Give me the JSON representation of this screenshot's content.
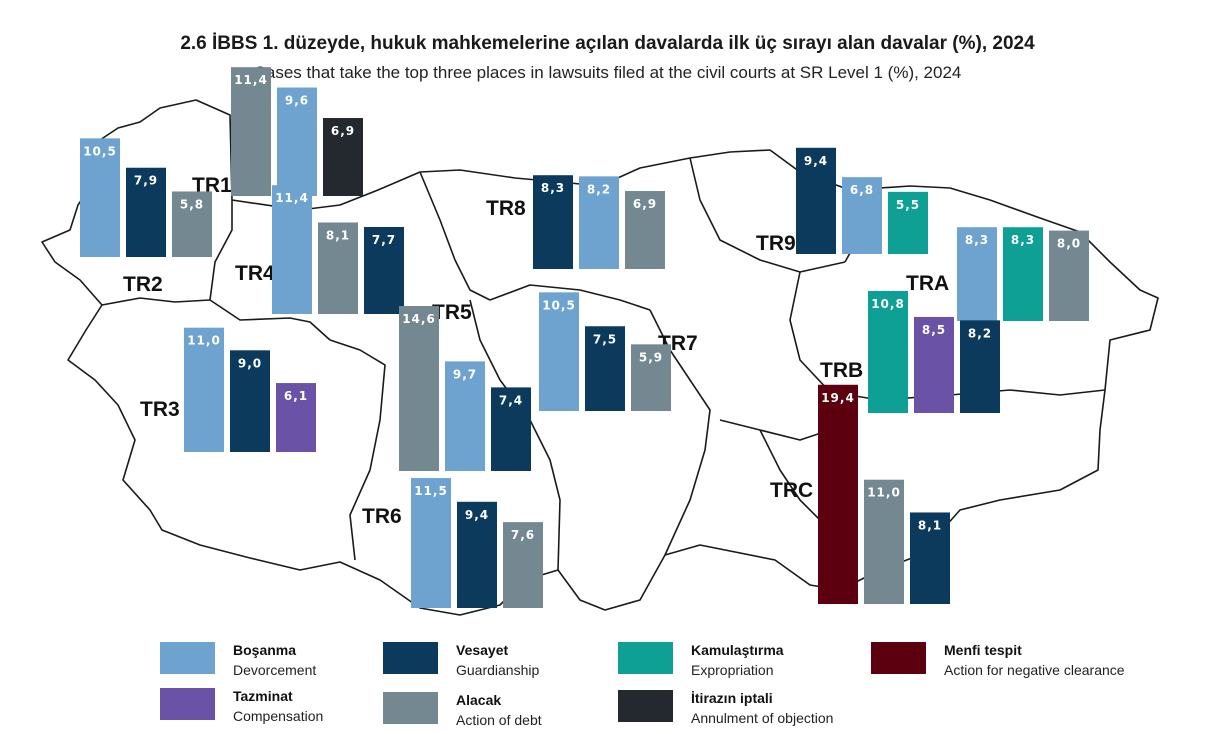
{
  "title": "2.6 İBBS 1. düzeyde, hukuk mahkemelerine açılan davalarda ilk üç sırayı alan davalar (%), 2024",
  "subtitle": "Cases that take the top three places in lawsuits filed at the civil courts at SR Level 1 (%), 2024",
  "legend": [
    {
      "tr": "Boşanma",
      "en": "Devorcement",
      "color": "#6ea3cf"
    },
    {
      "tr": "Vesayet",
      "en": "Guardianship",
      "color": "#0b3a5c"
    },
    {
      "tr": "Kamulaştırma",
      "en": "Expropriation",
      "color": "#0fa095"
    },
    {
      "tr": "Menfi tespit",
      "en": "Action for negative clearance",
      "color": "#5c0010"
    },
    {
      "tr": "Tazminat",
      "en": "Compensation",
      "color": "#6a52a6"
    },
    {
      "tr": "Alacak",
      "en": "Action of debt",
      "color": "#748891"
    },
    {
      "tr": "İtirazın iptali",
      "en": "Annulment of objection",
      "color": "#23292f"
    }
  ],
  "chart_data": {
    "type": "bar",
    "title": "2.6 İBBS 1. düzeyde, hukuk mahkemelerine açılan davalarda ilk üç sırayı alan davalar (%), 2024",
    "subtitle": "Cases that take the top three places in lawsuits filed at the civil courts at SR Level 1 (%), 2024",
    "map_background": "Turkey NUTS-1 regions",
    "categories": [
      "Boşanma",
      "Vesayet",
      "Kamulaştırma",
      "Menfi tespit",
      "Tazminat",
      "Alacak",
      "İtirazın iptali"
    ],
    "regions": [
      {
        "name": "TR1",
        "bars": [
          {
            "category": "Alacak",
            "value": 11.4,
            "label": "11,4"
          },
          {
            "category": "Boşanma",
            "value": 9.6,
            "label": "9,6"
          },
          {
            "category": "İtirazın iptali",
            "value": 6.9,
            "label": "6,9"
          }
        ]
      },
      {
        "name": "TR2",
        "bars": [
          {
            "category": "Boşanma",
            "value": 10.5,
            "label": "10,5"
          },
          {
            "category": "Vesayet",
            "value": 7.9,
            "label": "7,9"
          },
          {
            "category": "Alacak",
            "value": 5.8,
            "label": "5,8"
          }
        ]
      },
      {
        "name": "TR3",
        "bars": [
          {
            "category": "Boşanma",
            "value": 11.0,
            "label": "11,0"
          },
          {
            "category": "Vesayet",
            "value": 9.0,
            "label": "9,0"
          },
          {
            "category": "Tazminat",
            "value": 6.1,
            "label": "6,1"
          }
        ]
      },
      {
        "name": "TR4",
        "bars": [
          {
            "category": "Boşanma",
            "value": 11.4,
            "label": "11,4"
          },
          {
            "category": "Alacak",
            "value": 8.1,
            "label": "8,1"
          },
          {
            "category": "Vesayet",
            "value": 7.7,
            "label": "7,7"
          }
        ]
      },
      {
        "name": "TR5",
        "bars": [
          {
            "category": "Alacak",
            "value": 14.6,
            "label": "14,6"
          },
          {
            "category": "Boşanma",
            "value": 9.7,
            "label": "9,7"
          },
          {
            "category": "Vesayet",
            "value": 7.4,
            "label": "7,4"
          }
        ]
      },
      {
        "name": "TR6",
        "bars": [
          {
            "category": "Boşanma",
            "value": 11.5,
            "label": "11,5"
          },
          {
            "category": "Vesayet",
            "value": 9.4,
            "label": "9,4"
          },
          {
            "category": "Alacak",
            "value": 7.6,
            "label": "7,6"
          }
        ]
      },
      {
        "name": "TR7",
        "bars": [
          {
            "category": "Boşanma",
            "value": 10.5,
            "label": "10,5"
          },
          {
            "category": "Vesayet",
            "value": 7.5,
            "label": "7,5"
          },
          {
            "category": "Alacak",
            "value": 5.9,
            "label": "5,9"
          }
        ]
      },
      {
        "name": "TR8",
        "bars": [
          {
            "category": "Vesayet",
            "value": 8.3,
            "label": "8,3"
          },
          {
            "category": "Boşanma",
            "value": 8.2,
            "label": "8,2"
          },
          {
            "category": "Alacak",
            "value": 6.9,
            "label": "6,9"
          }
        ]
      },
      {
        "name": "TR9",
        "bars": [
          {
            "category": "Vesayet",
            "value": 9.4,
            "label": "9,4"
          },
          {
            "category": "Boşanma",
            "value": 6.8,
            "label": "6,8"
          },
          {
            "category": "Kamulaştırma",
            "value": 5.5,
            "label": "5,5"
          }
        ]
      },
      {
        "name": "TRA",
        "bars": [
          {
            "category": "Boşanma",
            "value": 8.3,
            "label": "8,3"
          },
          {
            "category": "Kamulaştırma",
            "value": 8.3,
            "label": "8,3"
          },
          {
            "category": "Alacak",
            "value": 8.0,
            "label": "8,0"
          }
        ]
      },
      {
        "name": "TRB",
        "bars": [
          {
            "category": "Kamulaştırma",
            "value": 10.8,
            "label": "10,8"
          },
          {
            "category": "Tazminat",
            "value": 8.5,
            "label": "8,5"
          },
          {
            "category": "Vesayet",
            "value": 8.2,
            "label": "8,2"
          }
        ]
      },
      {
        "name": "TRC",
        "bars": [
          {
            "category": "Menfi tespit",
            "value": 19.4,
            "label": "19,4"
          },
          {
            "category": "Alacak",
            "value": 11.0,
            "label": "11,0"
          },
          {
            "category": "Vesayet",
            "value": 8.1,
            "label": "8,1"
          }
        ]
      }
    ]
  }
}
